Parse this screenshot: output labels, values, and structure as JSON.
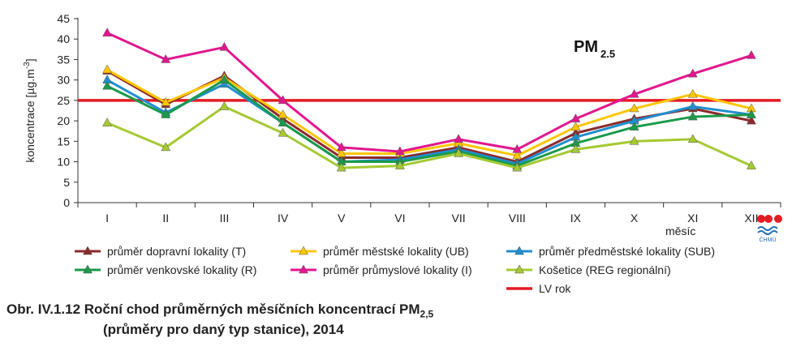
{
  "chart_data": {
    "type": "line",
    "title": "PM",
    "title_sub": "2.5",
    "ylabel": "koncentrace [µg.m",
    "ylabel_sup": "-3",
    "ylabel_end": "]",
    "xlabel": "měsíc",
    "ylim": [
      0,
      45
    ],
    "yticks": [
      0,
      5,
      10,
      15,
      20,
      25,
      30,
      35,
      40,
      45
    ],
    "categories": [
      "I",
      "II",
      "III",
      "IV",
      "V",
      "VI",
      "VII",
      "VIII",
      "IX",
      "X",
      "XI",
      "XII"
    ],
    "grid": false,
    "series": [
      {
        "name": "průměr dopravní lokality (T)",
        "color": "#8b2a2a",
        "values": [
          32.2,
          24.0,
          31.0,
          20.5,
          11.0,
          11.0,
          13.5,
          10.0,
          17.0,
          20.5,
          23.0,
          20.0
        ]
      },
      {
        "name": "průměr městské lokality (UB)",
        "color": "#ffc600",
        "values": [
          32.5,
          24.5,
          30.5,
          21.5,
          12.0,
          12.0,
          14.5,
          11.5,
          18.5,
          23.0,
          26.5,
          23.0
        ]
      },
      {
        "name": "průměr předměstské lokality (SUB)",
        "color": "#1f8fd0",
        "values": [
          30.0,
          22.0,
          29.0,
          19.5,
          10.0,
          10.5,
          13.0,
          9.5,
          16.0,
          20.0,
          23.5,
          21.5
        ]
      },
      {
        "name": "průměr venkovské lokality (R)",
        "color": "#1a9a4a",
        "values": [
          28.5,
          21.5,
          30.0,
          19.5,
          10.0,
          10.0,
          12.5,
          9.0,
          14.5,
          18.5,
          21.0,
          21.5
        ]
      },
      {
        "name": "průměr průmyslové lokality (I)",
        "color": "#e2168f",
        "values": [
          41.5,
          35.0,
          38.0,
          25.0,
          13.5,
          12.5,
          15.5,
          13.0,
          20.5,
          26.5,
          31.5,
          36.0
        ]
      },
      {
        "name": "Košetice (REG regionální)",
        "color": "#a5c932",
        "values": [
          19.5,
          13.5,
          23.5,
          17.0,
          8.5,
          9.0,
          12.0,
          8.5,
          13.0,
          15.0,
          15.5,
          9.0
        ]
      }
    ],
    "limit_line": {
      "name": "LV rok",
      "value": 25,
      "color": "#e51b24"
    },
    "legend_position": "bottom"
  },
  "logo": {
    "text": "ČHMÚ",
    "dot_color": "#e51b24",
    "wave_color": "#1f6fb8"
  },
  "caption": {
    "prefix": "Obr. IV.1.12  Roční chod průměrných měsíčních koncentrací PM",
    "prefix_sub": "2,5",
    "line2": "(průměry pro daný typ stanice), 2014"
  }
}
